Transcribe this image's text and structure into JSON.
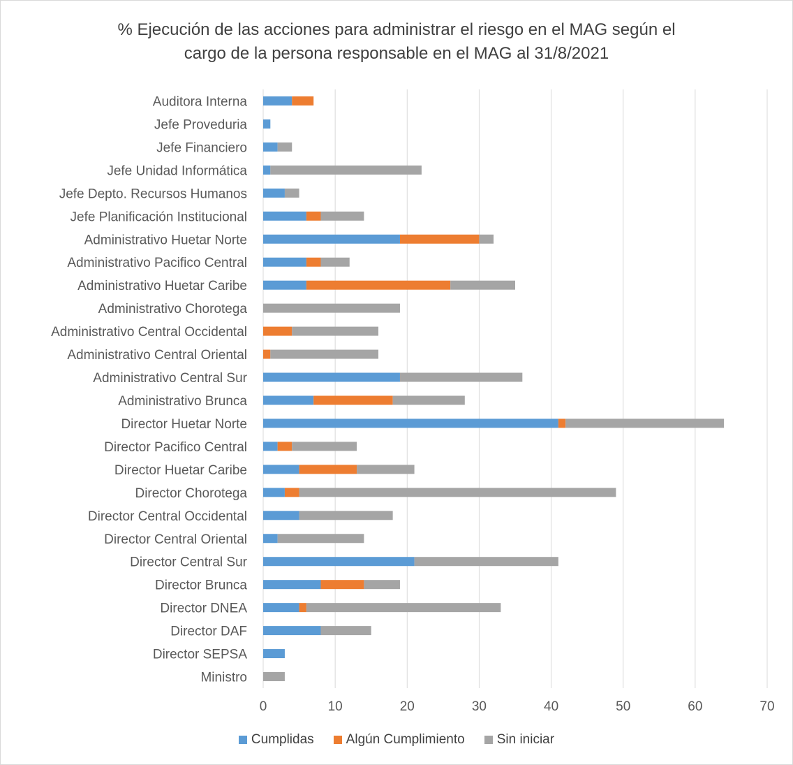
{
  "chart_data": {
    "type": "bar",
    "orientation": "horizontal",
    "stacked": true,
    "title_line1": "% Ejecución de las acciones para administrar el riesgo en el MAG según el",
    "title_line2": "cargo de la persona responsable en el MAG al 31/8/2021",
    "xlim": [
      0,
      70
    ],
    "xticks": [
      "0",
      "10",
      "20",
      "30",
      "40",
      "50",
      "60",
      "70"
    ],
    "grid": "vertical",
    "legend_position": "bottom",
    "categories": [
      "Auditora Interna",
      "Jefe Proveduria",
      "Jefe Financiero",
      "Jefe Unidad Informática",
      "Jefe Depto. Recursos Humanos",
      "Jefe Planificación Institucional",
      "Administrativo Huetar Norte",
      "Administrativo Pacifico Central",
      "Administrativo Huetar Caribe",
      "Administrativo Chorotega",
      "Administrativo Central Occidental",
      "Administrativo Central Oriental",
      "Administrativo Central Sur",
      "Administrativo Brunca",
      "Director Huetar Norte",
      "Director Pacifico Central",
      "Director Huetar Caribe",
      "Director Chorotega",
      "Director Central Occidental",
      "Director Central Oriental",
      "Director Central Sur",
      "Director Brunca",
      "Director DNEA",
      "Director DAF",
      "Director SEPSA",
      "Ministro"
    ],
    "series": [
      {
        "name": "Cumplidas",
        "color": "#5b9bd5",
        "values": [
          4,
          1,
          2,
          1,
          3,
          6,
          19,
          6,
          6,
          0,
          0,
          0,
          19,
          7,
          41,
          2,
          5,
          3,
          5,
          2,
          21,
          8,
          5,
          8,
          3,
          0
        ]
      },
      {
        "name": "Algún Cumplimiento",
        "color": "#ed7d31",
        "values": [
          3,
          0,
          0,
          0,
          0,
          2,
          11,
          2,
          20,
          0,
          4,
          1,
          0,
          11,
          1,
          2,
          8,
          2,
          0,
          0,
          0,
          6,
          1,
          0,
          0,
          0
        ]
      },
      {
        "name": "Sin iniciar",
        "color": "#a5a5a5",
        "values": [
          0,
          0,
          2,
          21,
          2,
          6,
          2,
          4,
          9,
          19,
          12,
          15,
          17,
          10,
          22,
          9,
          8,
          44,
          13,
          12,
          20,
          5,
          27,
          7,
          0,
          3
        ]
      }
    ]
  }
}
